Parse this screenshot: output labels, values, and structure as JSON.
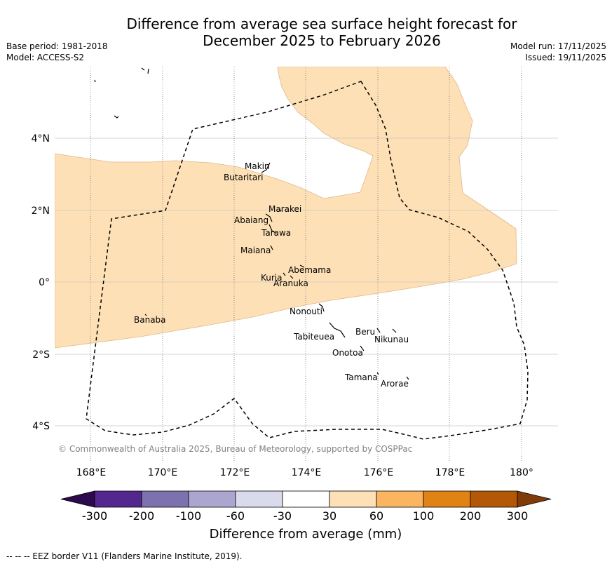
{
  "header": {
    "title_line1": "Difference from average sea surface height forecast for",
    "title_line2": "December 2025 to February 2026",
    "base_period": "Base period: 1981-2018",
    "model": "Model: ACCESS-S2",
    "model_run": "Model run: 17/11/2025",
    "issued": "Issued: 19/11/2025"
  },
  "map": {
    "lat_labels": [
      "4°N",
      "2°N",
      "0°",
      "2°S",
      "4°S"
    ],
    "lon_labels": [
      "168°E",
      "170°E",
      "172°E",
      "174°E",
      "176°E",
      "178°E",
      "180°"
    ],
    "places": {
      "makin": "Makin",
      "butaritari": "Butaritari",
      "marakei": "Marakei",
      "abaiang": "Abaiang",
      "tarawa": "Tarawa",
      "maiana": "Maiana",
      "abemama": "Abemama",
      "kuria": "Kuria",
      "aranuka": "Aranuka",
      "nonouti": "Nonouti",
      "banaba": "Banaba",
      "beru": "Beru",
      "nikunau": "Nikunau",
      "tabiteuea": "Tabiteuea",
      "onotoa": "Onotoa",
      "tamana": "Tamana",
      "arorae": "Arorae"
    },
    "copyright": "© Commonwealth of Australia 2025, Bureau of Meteorology, supported by COSPPac",
    "anomaly_category_shaded": "30 to 60"
  },
  "colorbar": {
    "ticks": [
      "-300",
      "-200",
      "-100",
      "-60",
      "-30",
      "30",
      "60",
      "100",
      "200",
      "300"
    ],
    "colors": [
      "#2d0a4e",
      "#54278f",
      "#7e72ae",
      "#aba6d0",
      "#d9dbec",
      "#ffffff",
      "#fde0b5",
      "#fbb460",
      "#e08214",
      "#b35806",
      "#7f3b08"
    ],
    "label": "Difference from average (mm)"
  },
  "footer": {
    "eez_note": "--  --  -- EEZ border V11 (Flanders Marine Institute, 2019)."
  }
}
